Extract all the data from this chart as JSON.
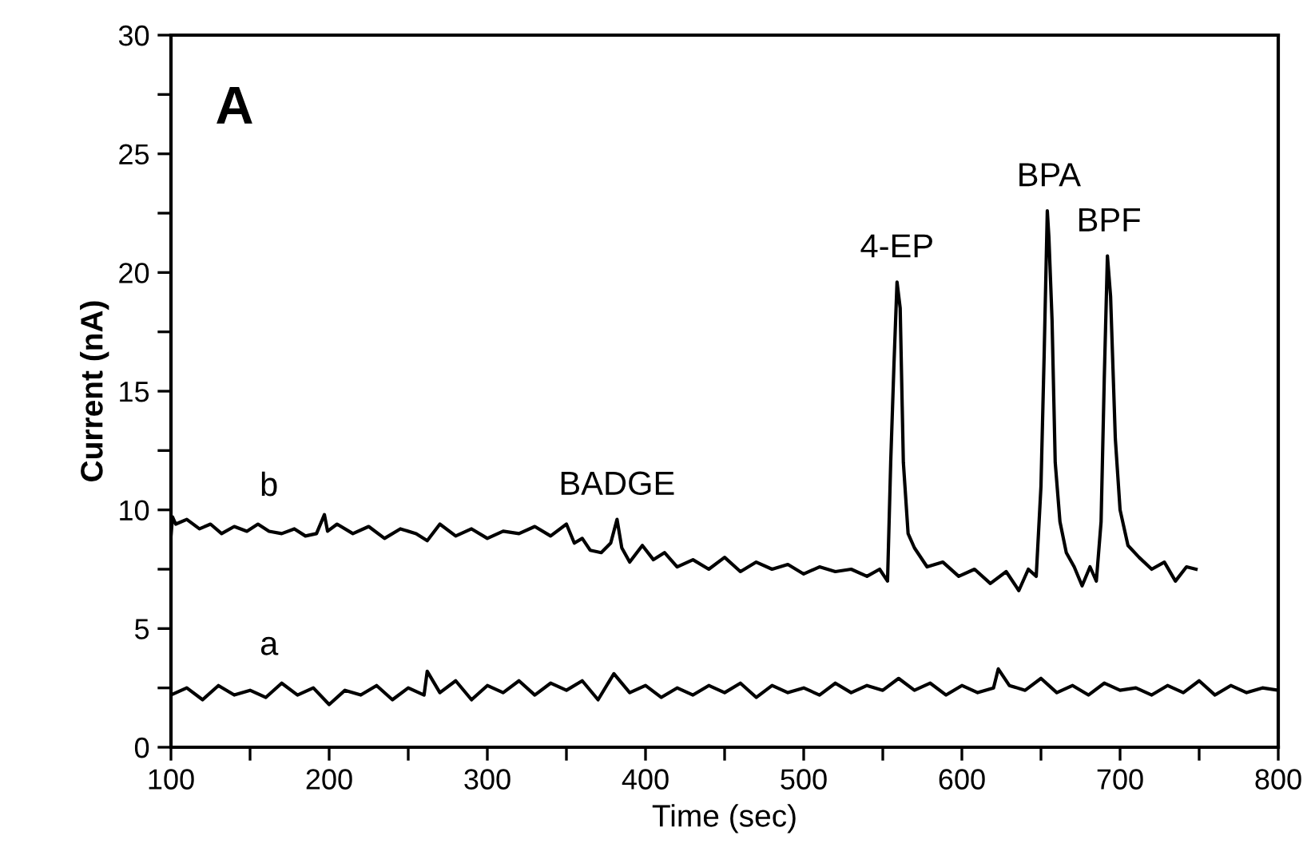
{
  "chart_data": {
    "type": "line",
    "xlabel": "Time (sec)",
    "ylabel": "Current (nA)",
    "xlim": [
      100,
      800
    ],
    "ylim": [
      0,
      30
    ],
    "xticks": [
      100,
      {
        "value": 150,
        "label": null
      },
      200,
      {
        "value": 250,
        "label": null
      },
      300,
      {
        "value": 350,
        "label": null
      },
      400,
      {
        "value": 450,
        "label": null
      },
      500,
      {
        "value": 550,
        "label": null
      },
      600,
      {
        "value": 650,
        "label": null
      },
      700,
      {
        "value": 750,
        "label": null
      },
      800
    ],
    "yticks": [
      0,
      {
        "value": 2.5,
        "label": null
      },
      5,
      {
        "value": 7.5,
        "label": null
      },
      10,
      {
        "value": 12.5,
        "label": null
      },
      15,
      {
        "value": 17.5,
        "label": null
      },
      20,
      {
        "value": 22.5,
        "label": null
      },
      25,
      {
        "value": 27.5,
        "label": null
      },
      30
    ],
    "grid": false,
    "legend": false,
    "marker": "none",
    "line_style": "solid",
    "series": [
      {
        "name": "b",
        "color": "#000000",
        "x": [
          100,
          101,
          103,
          110,
          118,
          125,
          132,
          140,
          148,
          155,
          162,
          170,
          178,
          185,
          192,
          197,
          199,
          205,
          215,
          225,
          235,
          245,
          255,
          262,
          270,
          280,
          290,
          300,
          310,
          320,
          330,
          340,
          350,
          355,
          360,
          365,
          372,
          378,
          382,
          385,
          390,
          398,
          405,
          412,
          420,
          430,
          440,
          450,
          460,
          470,
          480,
          490,
          500,
          510,
          520,
          530,
          540,
          548,
          553,
          555,
          557,
          559,
          561,
          563,
          566,
          570,
          578,
          588,
          598,
          608,
          618,
          628,
          636,
          642,
          647,
          650,
          652,
          654,
          655,
          657,
          659,
          662,
          666,
          671,
          676,
          681,
          685,
          688,
          690,
          692,
          694,
          697,
          700,
          705,
          712,
          720,
          728,
          735,
          742,
          748
        ],
        "values": [
          8.9,
          9.7,
          9.4,
          9.6,
          9.2,
          9.4,
          9.0,
          9.3,
          9.1,
          9.4,
          9.1,
          9.0,
          9.2,
          8.9,
          9.0,
          9.8,
          9.1,
          9.4,
          9.0,
          9.3,
          8.8,
          9.2,
          9.0,
          8.7,
          9.4,
          8.9,
          9.2,
          8.8,
          9.1,
          9.0,
          9.3,
          8.9,
          9.4,
          8.6,
          8.8,
          8.3,
          8.2,
          8.6,
          9.6,
          8.4,
          7.8,
          8.5,
          7.9,
          8.2,
          7.6,
          7.9,
          7.5,
          8.0,
          7.4,
          7.8,
          7.5,
          7.7,
          7.3,
          7.6,
          7.4,
          7.5,
          7.2,
          7.5,
          7.0,
          12.0,
          16.0,
          19.6,
          18.5,
          12.0,
          9.0,
          8.4,
          7.6,
          7.8,
          7.2,
          7.5,
          6.9,
          7.4,
          6.6,
          7.5,
          7.2,
          11.0,
          16.5,
          22.6,
          21.5,
          18.0,
          12.0,
          9.5,
          8.2,
          7.6,
          6.8,
          7.6,
          7.0,
          9.5,
          15.5,
          20.7,
          19.0,
          13.0,
          10.0,
          8.5,
          8.0,
          7.5,
          7.8,
          7.0,
          7.6,
          7.5
        ]
      },
      {
        "name": "a",
        "color": "#000000",
        "x": [
          100,
          110,
          120,
          130,
          140,
          150,
          160,
          170,
          180,
          190,
          200,
          210,
          220,
          230,
          240,
          250,
          260,
          262,
          270,
          280,
          290,
          300,
          310,
          320,
          330,
          340,
          350,
          360,
          370,
          380,
          390,
          400,
          410,
          420,
          430,
          440,
          450,
          460,
          470,
          480,
          490,
          500,
          510,
          520,
          530,
          540,
          550,
          560,
          570,
          580,
          590,
          600,
          610,
          620,
          623,
          630,
          640,
          650,
          660,
          670,
          680,
          690,
          700,
          710,
          720,
          730,
          740,
          750,
          760,
          770,
          780,
          790,
          800
        ],
        "values": [
          2.2,
          2.5,
          2.0,
          2.6,
          2.2,
          2.4,
          2.1,
          2.7,
          2.2,
          2.5,
          1.8,
          2.4,
          2.2,
          2.6,
          2.0,
          2.5,
          2.2,
          3.2,
          2.3,
          2.8,
          2.0,
          2.6,
          2.3,
          2.8,
          2.2,
          2.7,
          2.4,
          2.8,
          2.0,
          3.1,
          2.3,
          2.6,
          2.1,
          2.5,
          2.2,
          2.6,
          2.3,
          2.7,
          2.1,
          2.6,
          2.3,
          2.5,
          2.2,
          2.7,
          2.3,
          2.6,
          2.4,
          2.9,
          2.4,
          2.7,
          2.2,
          2.6,
          2.3,
          2.5,
          3.3,
          2.6,
          2.4,
          2.9,
          2.3,
          2.6,
          2.2,
          2.7,
          2.4,
          2.5,
          2.2,
          2.6,
          2.3,
          2.8,
          2.2,
          2.6,
          2.3,
          2.5,
          2.4
        ]
      }
    ],
    "annotations": [
      "A",
      {
        "text": "BADGE",
        "x": 382,
        "y": 9.6
      },
      {
        "text": "4-EP",
        "x": 559,
        "y": 19.6
      },
      {
        "text": "BPA",
        "x": 655,
        "y": 22.6
      },
      {
        "text": "BPF",
        "x": 693,
        "y": 20.7
      }
    ]
  }
}
